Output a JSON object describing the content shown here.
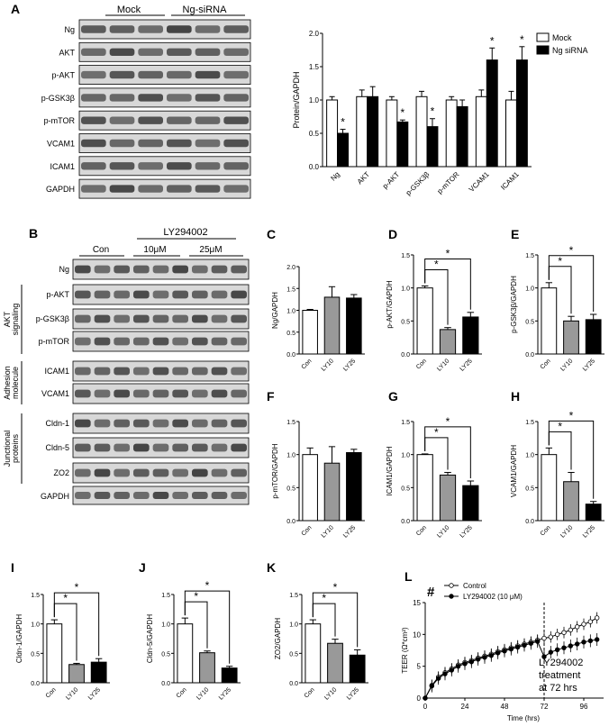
{
  "panel_a": {
    "letter": "A",
    "blot_groups": [
      "Mock",
      "Ng-siRNA"
    ],
    "blot_rows": [
      "Ng",
      "AKT",
      "p-AKT",
      "p-GSK3β",
      "p-mTOR",
      "VCAM1",
      "ICAM1",
      "GAPDH"
    ]
  },
  "panel_b": {
    "letter": "B",
    "treatment": "LY294002",
    "groups": [
      "Con",
      "10μM",
      "25μM"
    ],
    "rows": [
      "Ng",
      "p-AKT",
      "p-GSK3β",
      "p-mTOR",
      "ICAM1",
      "VCAM1",
      "Cldn-1",
      "Cldn-5",
      "ZO2",
      "GAPDH"
    ],
    "row_groups": [
      "AKT signaling",
      "Adhesion molecule",
      "Junctional proteins"
    ]
  },
  "chart_data": [
    {
      "id": "A",
      "type": "bar",
      "categories": [
        "Ng",
        "AKT",
        "p-AKT",
        "p-GSK3β",
        "p-mTOR",
        "VCAM1",
        "ICAM1"
      ],
      "ylabel": "Protein/GAPDH",
      "ylim": [
        0,
        2.0
      ],
      "yticks": [
        "0.0",
        "0.5",
        "1.0",
        "1.5",
        "2.0"
      ],
      "legend": "top-right",
      "series": [
        {
          "name": "Mock",
          "color": "#ffffff",
          "values": [
            1.0,
            1.05,
            1.0,
            1.05,
            1.0,
            1.05,
            1.0
          ],
          "errors": [
            0.05,
            0.1,
            0.05,
            0.08,
            0.05,
            0.1,
            0.13
          ]
        },
        {
          "name": "Ng siRNA",
          "color": "#000000",
          "values": [
            0.5,
            1.05,
            0.67,
            0.6,
            0.9,
            1.6,
            1.6
          ],
          "errors": [
            0.06,
            0.15,
            0.03,
            0.12,
            0.1,
            0.18,
            0.2
          ]
        }
      ],
      "stars": [
        "*",
        "",
        "*",
        "*",
        "",
        "*",
        "*"
      ]
    },
    {
      "id": "C",
      "type": "bar",
      "categories": [
        "Con",
        "LY10",
        "LY25"
      ],
      "colors": [
        "#ffffff",
        "#999999",
        "#000000"
      ],
      "ylabel": "Ng/GAPDH",
      "ylim": [
        0,
        2.0
      ],
      "yticks": [
        "0.0",
        "0.5",
        "1.0",
        "1.5",
        "2.0"
      ],
      "values": [
        1.0,
        1.3,
        1.28
      ],
      "errors": [
        0.02,
        0.24,
        0.08
      ],
      "sig": []
    },
    {
      "id": "D",
      "type": "bar",
      "categories": [
        "Con",
        "LY10",
        "LY25"
      ],
      "colors": [
        "#ffffff",
        "#999999",
        "#000000"
      ],
      "ylabel": "p-AKT/GAPDH",
      "ylim": [
        0,
        1.5
      ],
      "yticks": [
        "0.0",
        "0.5",
        "1.0",
        "1.5"
      ],
      "values": [
        1.0,
        0.37,
        0.56
      ],
      "errors": [
        0.03,
        0.03,
        0.07
      ],
      "sig": [
        1,
        2
      ]
    },
    {
      "id": "E",
      "type": "bar",
      "categories": [
        "Con",
        "LY10",
        "LY25"
      ],
      "colors": [
        "#ffffff",
        "#999999",
        "#000000"
      ],
      "ylabel": "p-GSK3β/GAPDH",
      "ylim": [
        0,
        1.5
      ],
      "yticks": [
        "0.0",
        "0.5",
        "1.0",
        "1.5"
      ],
      "values": [
        1.0,
        0.5,
        0.52
      ],
      "errors": [
        0.08,
        0.07,
        0.08
      ],
      "sig": [
        1,
        2
      ]
    },
    {
      "id": "F",
      "type": "bar",
      "categories": [
        "Con",
        "LY10",
        "LY25"
      ],
      "colors": [
        "#ffffff",
        "#999999",
        "#000000"
      ],
      "ylabel": "p-mTOR/GAPDH",
      "ylim": [
        0,
        1.5
      ],
      "yticks": [
        "0.0",
        "0.5",
        "1.0",
        "1.5"
      ],
      "values": [
        1.0,
        0.87,
        1.03
      ],
      "errors": [
        0.1,
        0.25,
        0.05
      ],
      "sig": []
    },
    {
      "id": "G",
      "type": "bar",
      "categories": [
        "Con",
        "LY10",
        "LY25"
      ],
      "colors": [
        "#ffffff",
        "#999999",
        "#000000"
      ],
      "ylabel": "ICAM1/GAPDH",
      "ylim": [
        0,
        1.5
      ],
      "yticks": [
        "0.0",
        "0.5",
        "1.0",
        "1.5"
      ],
      "values": [
        1.0,
        0.69,
        0.53
      ],
      "errors": [
        0.01,
        0.04,
        0.07
      ],
      "sig": [
        1,
        2
      ]
    },
    {
      "id": "H",
      "type": "bar",
      "categories": [
        "Con",
        "LY10",
        "LY25"
      ],
      "colors": [
        "#ffffff",
        "#999999",
        "#000000"
      ],
      "ylabel": "VCAM1/GAPDH",
      "ylim": [
        0,
        1.5
      ],
      "yticks": [
        "0.0",
        "0.5",
        "1.0",
        "1.5"
      ],
      "values": [
        1.0,
        0.59,
        0.25
      ],
      "errors": [
        0.1,
        0.14,
        0.04
      ],
      "sig": [
        1,
        2
      ]
    },
    {
      "id": "I",
      "type": "bar",
      "categories": [
        "Con",
        "LY10",
        "LY25"
      ],
      "colors": [
        "#ffffff",
        "#999999",
        "#000000"
      ],
      "ylabel": "Cldn-1/GAPDH",
      "ylim": [
        0,
        1.5
      ],
      "yticks": [
        "0.0",
        "0.5",
        "1.0",
        "1.5"
      ],
      "values": [
        1.0,
        0.31,
        0.35
      ],
      "errors": [
        0.07,
        0.02,
        0.06
      ],
      "sig": [
        1,
        2
      ]
    },
    {
      "id": "J",
      "type": "bar",
      "categories": [
        "Con",
        "LY10",
        "LY25"
      ],
      "colors": [
        "#ffffff",
        "#999999",
        "#000000"
      ],
      "ylabel": "Cldn-5/GAPDH",
      "ylim": [
        0,
        1.5
      ],
      "yticks": [
        "0.0",
        "0.5",
        "1.0",
        "1.5"
      ],
      "values": [
        1.0,
        0.51,
        0.25
      ],
      "errors": [
        0.1,
        0.03,
        0.03
      ],
      "sig": [
        1,
        2
      ]
    },
    {
      "id": "K",
      "type": "bar",
      "categories": [
        "Con",
        "LY10",
        "LY25"
      ],
      "colors": [
        "#ffffff",
        "#999999",
        "#000000"
      ],
      "ylabel": "ZO2/GAPDH",
      "ylim": [
        0,
        1.5
      ],
      "yticks": [
        "0.0",
        "0.5",
        "1.0",
        "1.5"
      ],
      "values": [
        1.0,
        0.67,
        0.47
      ],
      "errors": [
        0.07,
        0.07,
        0.09
      ],
      "sig": [
        1,
        2
      ]
    },
    {
      "id": "L",
      "type": "line",
      "xlabel": "Time (hrs)",
      "ylabel": "TEER (Ω*cm²)",
      "xlim": [
        0,
        108
      ],
      "ylim": [
        0,
        15
      ],
      "xticks": [
        0,
        24,
        48,
        72,
        96
      ],
      "yticks": [
        0,
        5,
        10,
        15
      ],
      "hash": "#",
      "marker_x": 72,
      "annotation": [
        "LY294002",
        "treatment",
        "at 72 hrs"
      ],
      "series": [
        {
          "name": "Control",
          "points": [
            [
              0,
              0
            ],
            [
              4,
              2
            ],
            [
              8,
              3.3
            ],
            [
              12,
              4
            ],
            [
              16,
              4.6
            ],
            [
              20,
              5.2
            ],
            [
              24,
              5.6
            ],
            [
              28,
              5.9
            ],
            [
              32,
              6.3
            ],
            [
              36,
              6.6
            ],
            [
              40,
              6.9
            ],
            [
              44,
              7.3
            ],
            [
              48,
              7.6
            ],
            [
              52,
              7.9
            ],
            [
              56,
              8.2
            ],
            [
              60,
              8.5
            ],
            [
              64,
              8.8
            ],
            [
              68,
              9.1
            ],
            [
              72,
              9.4
            ],
            [
              76,
              9.6
            ],
            [
              80,
              10
            ],
            [
              84,
              10.3
            ],
            [
              88,
              10.7
            ],
            [
              92,
              11.2
            ],
            [
              96,
              11.6
            ],
            [
              100,
              12
            ],
            [
              104,
              12.6
            ]
          ],
          "err": 0.9
        },
        {
          "name": "LY294002 (10 μM)",
          "points": [
            [
              0,
              0
            ],
            [
              4,
              1.9
            ],
            [
              8,
              3.1
            ],
            [
              12,
              3.8
            ],
            [
              16,
              4.4
            ],
            [
              20,
              5
            ],
            [
              24,
              5.4
            ],
            [
              28,
              5.7
            ],
            [
              32,
              6.1
            ],
            [
              36,
              6.4
            ],
            [
              40,
              6.7
            ],
            [
              44,
              7.1
            ],
            [
              48,
              7.4
            ],
            [
              52,
              7.7
            ],
            [
              56,
              8
            ],
            [
              60,
              8.3
            ],
            [
              64,
              8.6
            ],
            [
              68,
              8.9
            ],
            [
              72,
              6.5
            ],
            [
              76,
              7.2
            ],
            [
              80,
              7.6
            ],
            [
              84,
              7.9
            ],
            [
              88,
              8.2
            ],
            [
              92,
              8.5
            ],
            [
              96,
              8.8
            ],
            [
              100,
              9
            ],
            [
              104,
              9.2
            ]
          ],
          "err": 1.0
        }
      ]
    }
  ]
}
